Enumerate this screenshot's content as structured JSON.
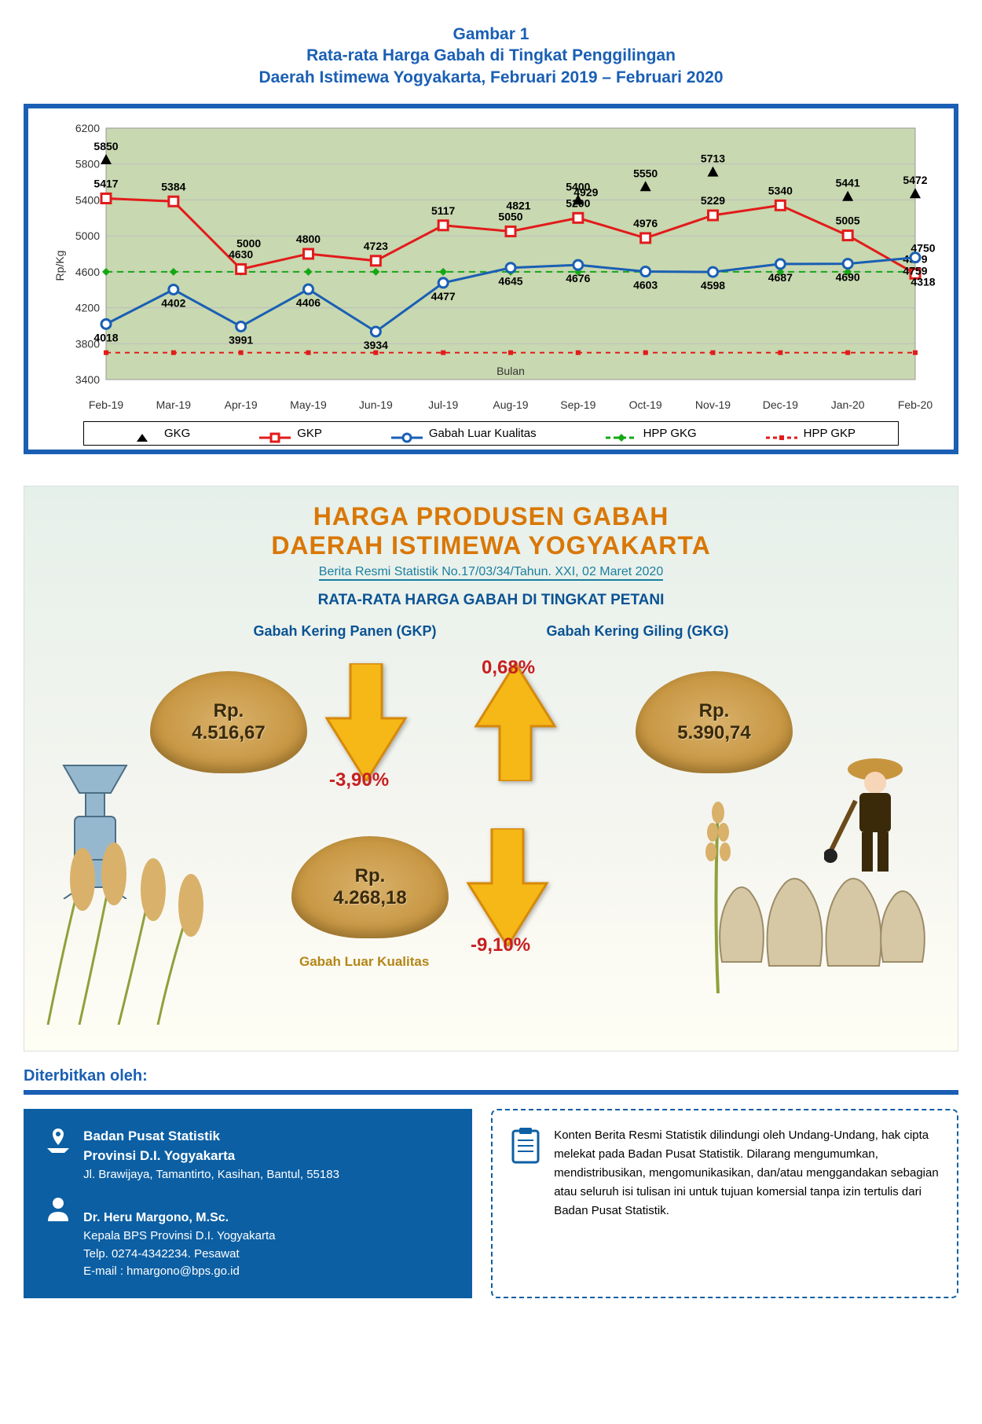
{
  "chart": {
    "title_line1": "Gambar 1",
    "title_line2": "Rata-rata Harga Gabah di Tingkat Penggilingan",
    "title_line3": "Daerah Istimewa Yogyakarta, Februari 2019 – Februari 2020",
    "ylabel": "Rp/Kg",
    "xlabel": "Bulan",
    "xcategories": [
      "Feb-19",
      "Mar-19",
      "Apr-19",
      "May-19",
      "Jun-19",
      "Jul-19",
      "Aug-19",
      "Sep-19",
      "Oct-19",
      "Nov-19",
      "Dec-19",
      "Jan-20",
      "Feb-20"
    ],
    "ylim": [
      3400,
      6200
    ],
    "ytick_step": 400,
    "background_color": "#c8d8b0",
    "grid_color": "#bdbdbd",
    "frame_color": "#1a5fb4",
    "series": {
      "gkg": {
        "label": "GKG",
        "type": "scatter",
        "marker": "triangle",
        "color": "#000000",
        "values": [
          5850,
          null,
          null,
          null,
          null,
          null,
          null,
          5400,
          5550,
          5713,
          null,
          5441,
          5472
        ]
      },
      "gkp": {
        "label": "GKP",
        "type": "line",
        "marker": "square",
        "color": "#e21b1b",
        "fill": "#ffffff",
        "values": [
          5417,
          5384,
          4630,
          4800,
          4723,
          5117,
          5050,
          5200,
          4976,
          5229,
          5340,
          5005,
          4579
        ],
        "extra_labels": {
          "2": "5000",
          "6": "4821",
          "7": "4929",
          "12": "4750"
        }
      },
      "luar": {
        "label": "Gabah Luar Kualitas",
        "type": "line",
        "marker": "circle",
        "color": "#1a5fb4",
        "fill": "#ffffff",
        "values": [
          4018,
          4402,
          3991,
          4406,
          3934,
          4477,
          4645,
          4676,
          4603,
          4598,
          4687,
          4690,
          4759
        ],
        "extra_labels": {
          "12": "4318"
        }
      },
      "hpp_gkg": {
        "label": "HPP GKG",
        "type": "hline",
        "value": 4600,
        "color": "#15a815",
        "dash": "8,6",
        "marker": "diamond"
      },
      "hpp_gkp": {
        "label": "HPP GKP",
        "type": "hline",
        "value": 3700,
        "color": "#e21b1b",
        "dash": "6,6",
        "marker": "square-small"
      }
    },
    "legend": [
      "GKG",
      "GKP",
      "Gabah Luar Kualitas",
      "HPP GKG",
      "HPP GKP"
    ]
  },
  "infographic": {
    "title_line1": "HARGA PRODUSEN GABAH",
    "title_line2": "DAERAH ISTIMEWA YOGYAKARTA",
    "subtitle": "Berita Resmi Statistik No.17/03/34/Tahun. XXI, 02 Maret 2020",
    "heading": "RATA-RATA HARGA GABAH DI TINGKAT PETANI",
    "gkp_title": "Gabah Kering Panen (GKP)",
    "gkg_title": "Gabah Kering Giling (GKG)",
    "gkp_price_prefix": "Rp.",
    "gkp_price": "4.516,67",
    "gkp_change": "-3,90%",
    "gkg_price_prefix": "Rp.",
    "gkg_price": "5.390,74",
    "gkg_change": "0,68%",
    "luar_price_prefix": "Rp.",
    "luar_price": "4.268,18",
    "luar_change": "-9,10%",
    "luar_label": "Gabah Luar Kualitas",
    "title_color": "#d97706",
    "heading_color": "#0b5394",
    "arrow_fill": "#f5b817",
    "arrow_stroke": "#d6890b",
    "pct_color": "#c71f1f"
  },
  "footer": {
    "pub_label": "Diterbitkan oleh:",
    "org_name": "Badan Pusat Statistik",
    "org_sub": "Provinsi D.I. Yogyakarta",
    "address": "Jl. Brawijaya, Tamantirto, Kasihan, Bantul, 55183",
    "person": "Dr. Heru Margono, M.Sc.",
    "person_title": "Kepala BPS Provinsi D.I. Yogyakarta",
    "phone": "Telp. 0274-4342234. Pesawat",
    "email": "E-mail : hmargono@bps.go.id",
    "notice": "Konten Berita Resmi Statistik dilindungi oleh Undang-Undang, hak cipta melekat pada Badan Pusat Statistik. Dilarang mengumumkan, mendistribusikan, mengomunikasikan, dan/atau menggandakan sebagian atau seluruh isi tulisan ini untuk tujuan komersial tanpa izin tertulis dari Badan Pusat Statistik.",
    "box_bg": "#0c5fa3",
    "dash_color": "#0c5fa3"
  }
}
